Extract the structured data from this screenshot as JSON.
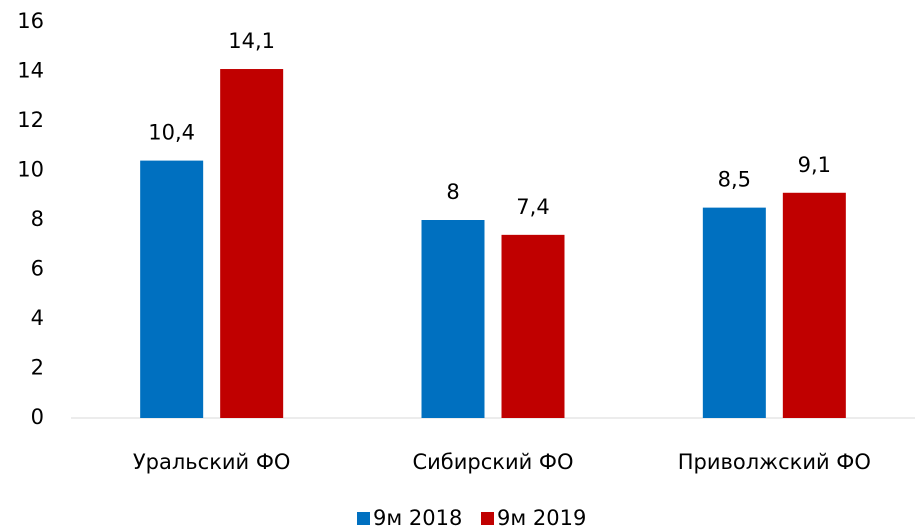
{
  "chart_data": {
    "type": "bar",
    "categories": [
      "Уральский ФО",
      "Сибирский ФО",
      "Приволжский ФО"
    ],
    "series": [
      {
        "name": "9м 2018",
        "color": "#0070c0",
        "values": [
          10.4,
          8,
          8.5
        ],
        "value_labels": [
          "10,4",
          "8",
          "8,5"
        ]
      },
      {
        "name": "9м 2019",
        "color": "#c00000",
        "values": [
          14.1,
          7.4,
          9.1
        ],
        "value_labels": [
          "14,1",
          "7,4",
          "9,1"
        ]
      }
    ],
    "ylim": [
      0,
      16
    ],
    "yticks": [
      0,
      2,
      4,
      6,
      8,
      10,
      12,
      14,
      16
    ],
    "grid": false,
    "legend": "bottom"
  }
}
